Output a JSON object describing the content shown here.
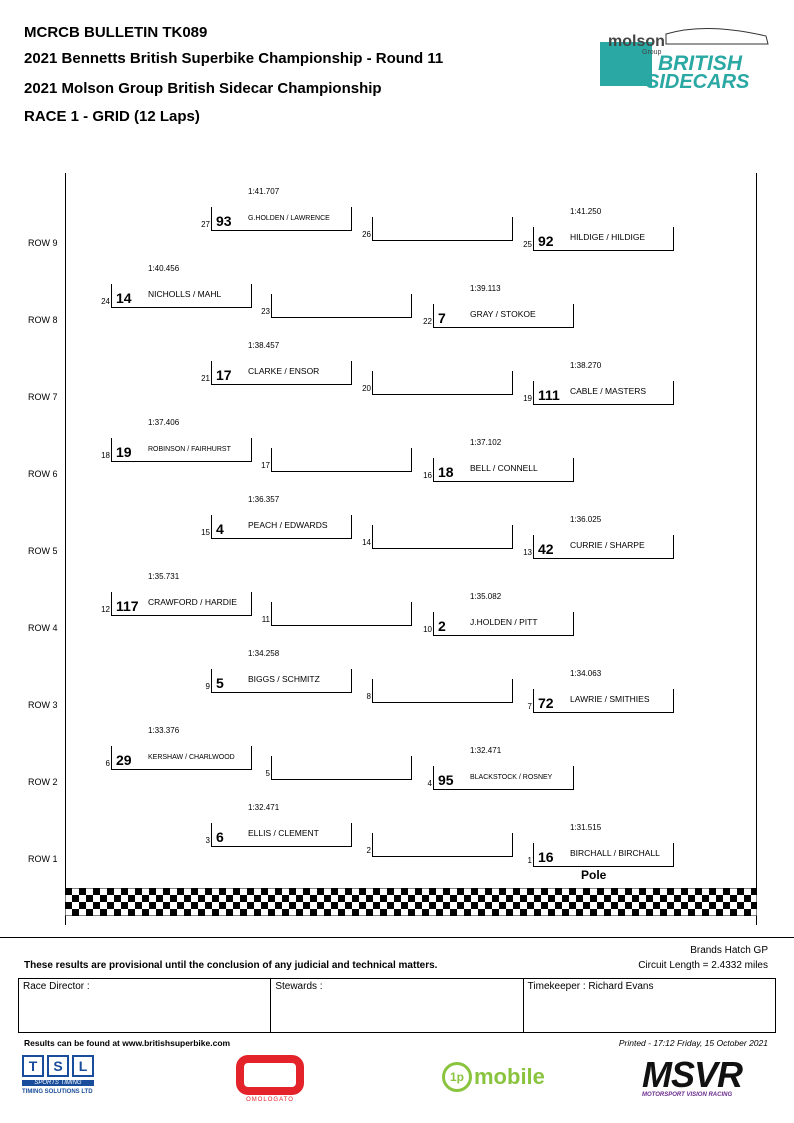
{
  "header": {
    "line1": "MCRCB BULLETIN TK089",
    "line2": "2021 Bennetts British Superbike Championship - Round 11",
    "line3": "2021 Molson Group British Sidecar Championship",
    "line4": "RACE 1 - GRID (12 Laps)"
  },
  "logo": {
    "molson": "molson",
    "group": "Group",
    "british": "BRITISH",
    "sidecars": "SIDECARS"
  },
  "rows": [
    "ROW 9",
    "ROW 8",
    "ROW 7",
    "ROW 6",
    "ROW 5",
    "ROW 4",
    "ROW 3",
    "ROW 2",
    "ROW 1"
  ],
  "grid": {
    "p27": {
      "pos": "27",
      "num": "93",
      "name": "G.HOLDEN / LAWRENCE",
      "time": "1:41.707"
    },
    "p26": {
      "pos": "26",
      "num": "",
      "name": "",
      "time": ""
    },
    "p25": {
      "pos": "25",
      "num": "92",
      "name": "HILDIGE / HILDIGE",
      "time": "1:41.250"
    },
    "p24": {
      "pos": "24",
      "num": "14",
      "name": "NICHOLLS / MAHL",
      "time": "1:40.456"
    },
    "p23": {
      "pos": "23",
      "num": "",
      "name": "",
      "time": ""
    },
    "p22": {
      "pos": "22",
      "num": "7",
      "name": "GRAY / STOKOE",
      "time": "1:39.113"
    },
    "p21": {
      "pos": "21",
      "num": "17",
      "name": "CLARKE / ENSOR",
      "time": "1:38.457"
    },
    "p20": {
      "pos": "20",
      "num": "",
      "name": "",
      "time": ""
    },
    "p19": {
      "pos": "19",
      "num": "111",
      "name": "CABLE / MASTERS",
      "time": "1:38.270"
    },
    "p18": {
      "pos": "18",
      "num": "19",
      "name": "ROBINSON / FAIRHURST",
      "time": "1:37.406"
    },
    "p17": {
      "pos": "17",
      "num": "",
      "name": "",
      "time": ""
    },
    "p16": {
      "pos": "16",
      "num": "18",
      "name": "BELL / CONNELL",
      "time": "1:37.102"
    },
    "p15": {
      "pos": "15",
      "num": "4",
      "name": "PEACH / EDWARDS",
      "time": "1:36.357"
    },
    "p14": {
      "pos": "14",
      "num": "",
      "name": "",
      "time": ""
    },
    "p13": {
      "pos": "13",
      "num": "42",
      "name": "CURRIE / SHARPE",
      "time": "1:36.025"
    },
    "p12": {
      "pos": "12",
      "num": "117",
      "name": "CRAWFORD / HARDIE",
      "time": "1:35.731"
    },
    "p11": {
      "pos": "11",
      "num": "",
      "name": "",
      "time": ""
    },
    "p10": {
      "pos": "10",
      "num": "2",
      "name": "J.HOLDEN / PITT",
      "time": "1:35.082"
    },
    "p9": {
      "pos": "9",
      "num": "5",
      "name": "BIGGS / SCHMITZ",
      "time": "1:34.258"
    },
    "p8": {
      "pos": "8",
      "num": "",
      "name": "",
      "time": ""
    },
    "p7": {
      "pos": "7",
      "num": "72",
      "name": "LAWRIE / SMITHIES",
      "time": "1:34.063"
    },
    "p6": {
      "pos": "6",
      "num": "29",
      "name": "KERSHAW / CHARLWOOD",
      "time": "1:33.376"
    },
    "p5": {
      "pos": "5",
      "num": "",
      "name": "",
      "time": ""
    },
    "p4": {
      "pos": "4",
      "num": "95",
      "name": "BLACKSTOCK / ROSNEY",
      "time": "1:32.471"
    },
    "p3": {
      "pos": "3",
      "num": "6",
      "name": "ELLIS / CLEMENT",
      "time": "1:32.471"
    },
    "p2": {
      "pos": "2",
      "num": "",
      "name": "",
      "time": ""
    },
    "p1": {
      "pos": "1",
      "num": "16",
      "name": "BIRCHALL / BIRCHALL",
      "time": "1:31.515"
    }
  },
  "pole_label": "Pole",
  "circuit": {
    "name": "Brands Hatch GP",
    "length": "Circuit Length = 2.4332 miles"
  },
  "disclaimer": "These results are provisional until the conclusion of any judicial and technical matters.",
  "signatures": {
    "race_director": "Race Director :",
    "stewards": "Stewards :",
    "timekeeper": "Timekeeper : Richard Evans"
  },
  "footer": {
    "results_url": "Results can be found at www.britishsuperbike.com",
    "printed": "Printed - 17:12 Friday, 15 October 2021"
  },
  "sponsors": {
    "tsl_letters": [
      "T",
      "S",
      "L"
    ],
    "tsl_sub": "SPORTS TIMING",
    "tsl_caption": "TIMING SOLUTIONS LTD",
    "omologato": "OMOLOGATO",
    "onep": "1p",
    "mobile": "mobile",
    "msvr": "MSVR",
    "msvr_sub": "MOTORSPORT VISION RACING"
  },
  "colors": {
    "sidecar_teal": "#2aa8a3",
    "onep_green": "#8ac43f",
    "omologato_red": "#e3222a",
    "msvr_purple": "#6b2d8e"
  }
}
